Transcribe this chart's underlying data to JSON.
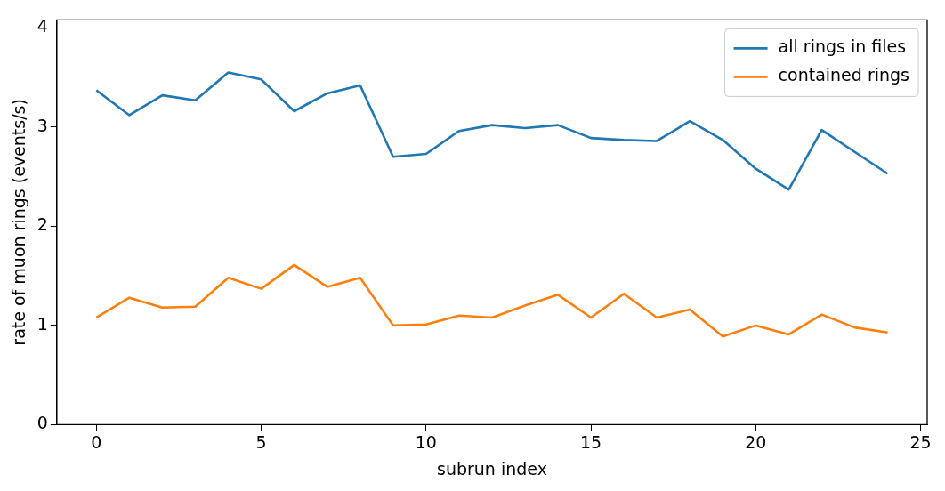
{
  "chart_data": {
    "type": "line",
    "xlabel": "subrun index",
    "ylabel": "rate of muon rings (events/s)",
    "x": [
      0,
      1,
      2,
      3,
      4,
      5,
      6,
      7,
      8,
      9,
      10,
      11,
      12,
      13,
      14,
      15,
      16,
      17,
      18,
      19,
      20,
      21,
      22,
      23,
      24
    ],
    "series": [
      {
        "name": "all rings in files",
        "color": "#1f77b4",
        "values": [
          3.37,
          3.12,
          3.32,
          3.27,
          3.55,
          3.48,
          3.16,
          3.34,
          3.42,
          2.7,
          2.73,
          2.96,
          3.02,
          2.99,
          3.02,
          2.89,
          2.87,
          2.86,
          3.06,
          2.87,
          2.58,
          2.37,
          2.97,
          2.75,
          2.53
        ]
      },
      {
        "name": "contained rings",
        "color": "#ff7f0e",
        "values": [
          1.08,
          1.28,
          1.18,
          1.19,
          1.48,
          1.37,
          1.61,
          1.39,
          1.48,
          1.0,
          1.01,
          1.1,
          1.08,
          1.2,
          1.31,
          1.08,
          1.32,
          1.08,
          1.16,
          0.89,
          1.0,
          0.91,
          1.11,
          0.98,
          0.93
        ]
      }
    ],
    "xlim": [
      -1.2,
      25.2
    ],
    "xticks": [
      0,
      5,
      10,
      15,
      20,
      25
    ],
    "ylim": [
      0,
      4.08
    ],
    "yticks": [
      0,
      1,
      2,
      3,
      4
    ],
    "grid": false,
    "legend": "top right",
    "marker": "none",
    "line_style": "solid"
  }
}
